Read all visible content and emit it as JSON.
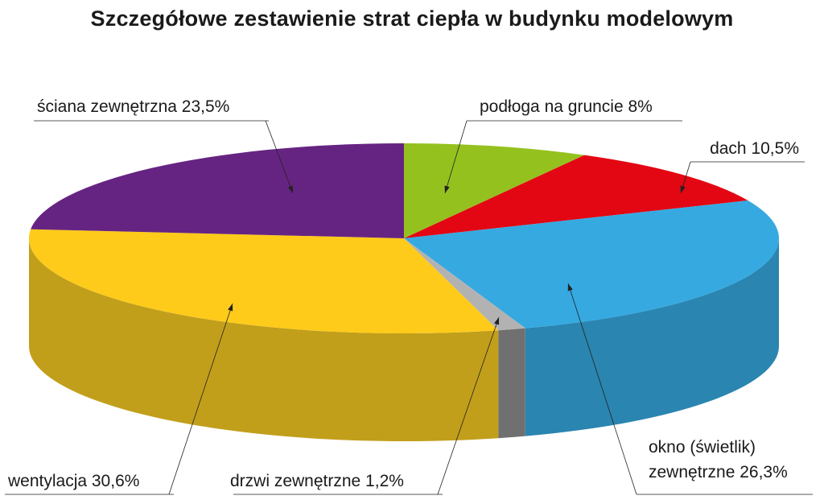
{
  "chart_data": {
    "type": "pie",
    "title": "Szczegółowe zestawienie strat ciepła w budynku modelowym",
    "slices": [
      {
        "key": "podloga",
        "label": "podłoga na gruncie 8%",
        "value": 8.0,
        "color": "#95c11f",
        "side": "#6f9117"
      },
      {
        "key": "dach",
        "label": "dach 10,5%",
        "value": 10.5,
        "color": "#e30613",
        "side": "#a8050e"
      },
      {
        "key": "okno",
        "label_lines": [
          "okno (świetlik)",
          "zewnętrzne 26,3%"
        ],
        "value": 26.3,
        "color": "#36a9e1",
        "side": "#2a85b0"
      },
      {
        "key": "drzwi",
        "label": "drzwi zewnętrzne 1,2%",
        "value": 1.2,
        "color": "#b2b2b2",
        "side": "#707070"
      },
      {
        "key": "wentylacja",
        "label": "wentylacja 30,6%",
        "value": 30.6,
        "color": "#fecb1a",
        "side": "#c29f1b"
      },
      {
        "key": "sciana",
        "label": "ściana zewnętrzna 23,5%",
        "value": 23.5,
        "color": "#662482",
        "side": "#4a1a5e"
      }
    ]
  }
}
